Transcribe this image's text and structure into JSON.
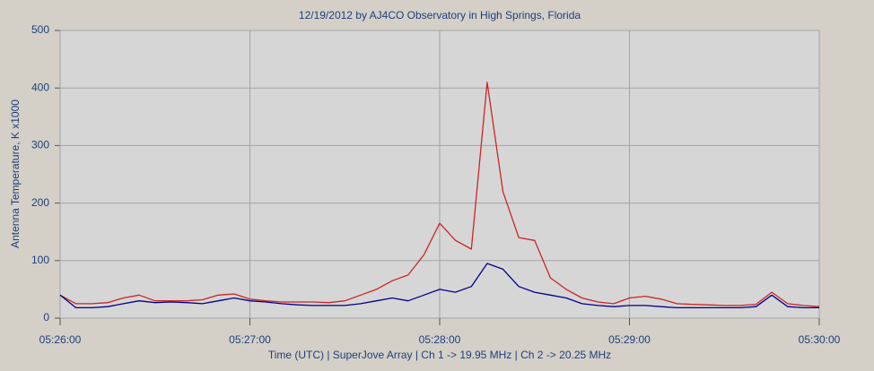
{
  "chart_data": {
    "type": "line",
    "title": "12/19/2012  by  AJ4CO Observatory  in  High Springs, Florida",
    "x_label": "Time (UTC)  |  SuperJove Array  |  Ch 1 -> 19.95 MHz  |  Ch 2 -> 20.25 MHz",
    "y_label": "Antenna Temperature, K x1000",
    "x": [
      "05:26:00",
      "05:26:05",
      "05:26:10",
      "05:26:15",
      "05:26:20",
      "05:26:25",
      "05:26:30",
      "05:26:35",
      "05:26:40",
      "05:26:45",
      "05:26:50",
      "05:26:55",
      "05:27:00",
      "05:27:05",
      "05:27:10",
      "05:27:15",
      "05:27:20",
      "05:27:25",
      "05:27:30",
      "05:27:35",
      "05:27:40",
      "05:27:45",
      "05:27:50",
      "05:27:55",
      "05:28:00",
      "05:28:05",
      "05:28:10",
      "05:28:15",
      "05:28:20",
      "05:28:25",
      "05:28:30",
      "05:28:35",
      "05:28:40",
      "05:28:45",
      "05:28:50",
      "05:28:55",
      "05:29:00",
      "05:29:05",
      "05:29:10",
      "05:29:15",
      "05:29:20",
      "05:29:25",
      "05:29:30",
      "05:29:35",
      "05:29:40",
      "05:29:45",
      "05:29:50",
      "05:29:55",
      "05:30:00"
    ],
    "series": [
      {
        "color": "#cc2424",
        "values": [
          40,
          25,
          25,
          27,
          35,
          40,
          30,
          30,
          30,
          32,
          40,
          42,
          33,
          30,
          28,
          28,
          28,
          27,
          30,
          40,
          50,
          65,
          75,
          110,
          165,
          135,
          120,
          410,
          220,
          140,
          135,
          70,
          50,
          35,
          28,
          25,
          35,
          38,
          33,
          25,
          24,
          23,
          22,
          22,
          24,
          45,
          25,
          22,
          20
        ]
      },
      {
        "color": "#00008b",
        "values": [
          40,
          18,
          18,
          20,
          25,
          30,
          27,
          28,
          27,
          25,
          30,
          35,
          30,
          28,
          25,
          23,
          22,
          22,
          22,
          25,
          30,
          35,
          30,
          40,
          50,
          45,
          55,
          95,
          85,
          55,
          45,
          40,
          35,
          25,
          22,
          20,
          22,
          22,
          20,
          18,
          18,
          18,
          18,
          18,
          20,
          40,
          20,
          18,
          18
        ]
      }
    ],
    "xlim": [
      "05:26:00",
      "05:30:00"
    ],
    "xticks": [
      "05:26:00",
      "05:27:00",
      "05:28:00",
      "05:29:00",
      "05:30:00"
    ],
    "ylim": [
      0,
      500
    ],
    "yticks": [
      0,
      100,
      200,
      300,
      400,
      500
    ],
    "grid": true
  }
}
